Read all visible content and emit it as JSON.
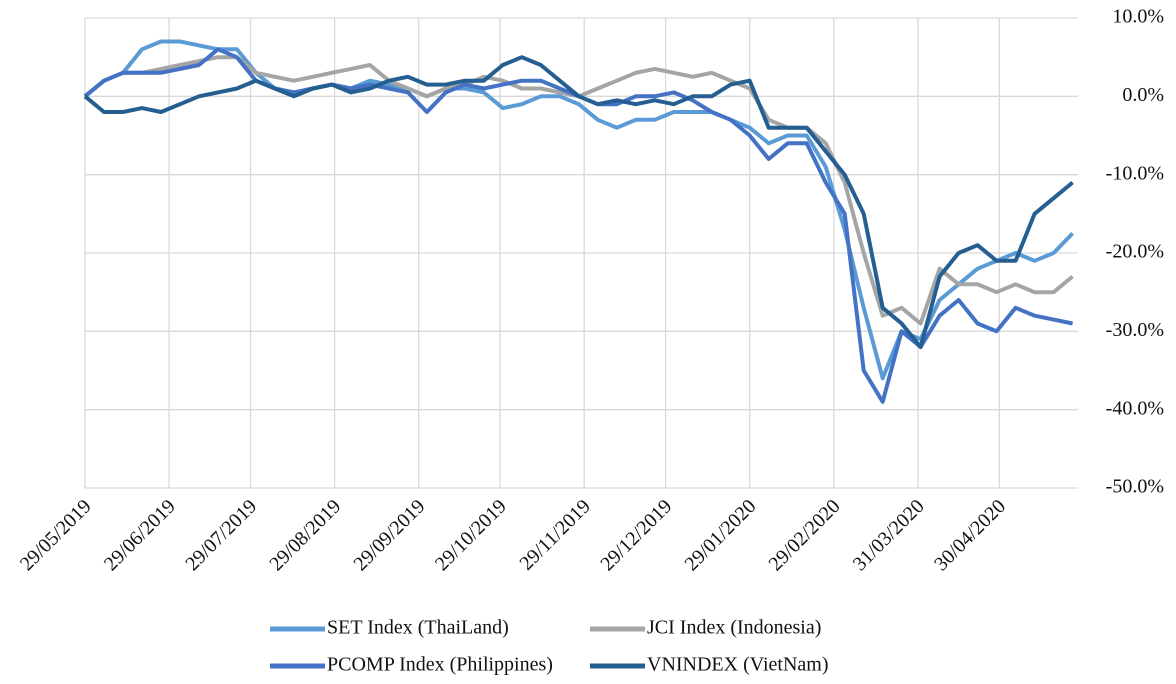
{
  "chart_data": {
    "type": "line",
    "x": [
      "29/05/2019",
      "05/06/2019",
      "12/06/2019",
      "19/06/2019",
      "26/06/2019",
      "03/07/2019",
      "10/07/2019",
      "17/07/2019",
      "24/07/2019",
      "31/07/2019",
      "07/08/2019",
      "14/08/2019",
      "21/08/2019",
      "28/08/2019",
      "04/09/2019",
      "11/09/2019",
      "18/09/2019",
      "25/09/2019",
      "02/10/2019",
      "09/10/2019",
      "16/10/2019",
      "23/10/2019",
      "30/10/2019",
      "06/11/2019",
      "13/11/2019",
      "20/11/2019",
      "27/11/2019",
      "04/12/2019",
      "11/12/2019",
      "18/12/2019",
      "25/12/2019",
      "01/01/2020",
      "08/01/2020",
      "15/01/2020",
      "22/01/2020",
      "29/01/2020",
      "05/02/2020",
      "12/02/2020",
      "19/02/2020",
      "26/02/2020",
      "04/03/2020",
      "11/03/2020",
      "18/03/2020",
      "25/03/2020",
      "01/04/2020",
      "08/04/2020",
      "15/04/2020",
      "22/04/2020",
      "29/04/2020",
      "06/05/2020",
      "13/05/2020",
      "20/05/2020",
      "27/05/2020"
    ],
    "series": [
      {
        "name": "SET Index (ThaiLand)",
        "color": "#5b9bd5",
        "values": [
          0,
          2,
          3,
          6,
          7,
          7,
          6.5,
          6,
          6,
          3,
          1,
          0.5,
          1,
          1.5,
          1,
          2,
          1.5,
          1,
          0,
          1,
          1,
          0.5,
          -1.5,
          -1,
          0,
          0,
          -1,
          -3,
          -4,
          -3,
          -3,
          -2,
          -2,
          -2,
          -3,
          -4,
          -6,
          -5,
          -5,
          -9,
          -17,
          -27,
          -36,
          -30,
          -31,
          -26,
          -24,
          -22,
          -21,
          -20,
          -21,
          -20,
          -17.5
        ]
      },
      {
        "name": "JCI Index (Indonesia)",
        "color": "#a5a5a5",
        "values": [
          0,
          2,
          3,
          3,
          3.5,
          4,
          4.5,
          5,
          5,
          3,
          2.5,
          2,
          2.5,
          3,
          3.5,
          4,
          2,
          1,
          0,
          1,
          1.5,
          2.5,
          2,
          1,
          1,
          0.5,
          0,
          1,
          2,
          3,
          3.5,
          3,
          2.5,
          3,
          2,
          1,
          -3,
          -4,
          -4,
          -6,
          -11,
          -20,
          -28,
          -27,
          -29,
          -22,
          -24,
          -24,
          -25,
          -24,
          -25,
          -25,
          -23
        ]
      },
      {
        "name": "PCOMP Index (Philippines)",
        "color": "#4472c4",
        "values": [
          0,
          2,
          3,
          3,
          3,
          3.5,
          4,
          6,
          5,
          2,
          1,
          0.5,
          1,
          1.5,
          1,
          1.5,
          1,
          0.5,
          -2,
          0.5,
          1.5,
          1,
          1.5,
          2,
          2,
          1,
          0,
          -1,
          -1,
          0,
          0,
          0.5,
          -0.5,
          -2,
          -3,
          -5,
          -8,
          -6,
          -6,
          -11,
          -15,
          -35,
          -39,
          -30,
          -32,
          -28,
          -26,
          -29,
          -30,
          -27,
          -28,
          -28.5,
          -29
        ]
      },
      {
        "name": "VNINDEX (VietNam)",
        "color": "#255e91",
        "values": [
          0,
          -2,
          -2,
          -1.5,
          -2,
          -1,
          0,
          0.5,
          1,
          2,
          1,
          0,
          1,
          1.5,
          0.5,
          1,
          2,
          2.5,
          1.5,
          1.5,
          2,
          2,
          4,
          5,
          4,
          2,
          0,
          -1,
          -0.5,
          -1,
          -0.5,
          -1,
          0,
          0,
          1.5,
          2,
          -4,
          -4,
          -4,
          -7,
          -10,
          -15,
          -27,
          -29,
          -32,
          -23,
          -20,
          -19,
          -21,
          -21,
          -15,
          -13,
          -11
        ]
      }
    ],
    "xlim": [
      "29/05/2019",
      "29/05/2020"
    ],
    "xticks": [
      "29/05/2019",
      "29/06/2019",
      "29/07/2019",
      "29/08/2019",
      "29/09/2019",
      "29/10/2019",
      "29/11/2019",
      "29/12/2019",
      "29/01/2020",
      "29/02/2020",
      "31/03/2020",
      "30/04/2020"
    ],
    "ylim": [
      -50,
      10
    ],
    "yticks": [
      {
        "value": 10,
        "label": "10.0%"
      },
      {
        "value": 0,
        "label": "0.0%"
      },
      {
        "value": -10,
        "label": "-10.0%"
      },
      {
        "value": -20,
        "label": "-20.0%"
      },
      {
        "value": -30,
        "label": "-30.0%"
      },
      {
        "value": -40,
        "label": "-40.0%"
      },
      {
        "value": -50,
        "label": "-50.0%"
      }
    ],
    "grid": true,
    "legend": "bottom"
  }
}
